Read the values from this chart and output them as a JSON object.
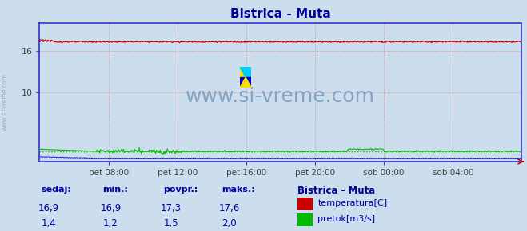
{
  "title": "Bistrica - Muta",
  "title_color": "#000099",
  "bg_color": "#ccdded",
  "plot_bg_color": "#ccdded",
  "border_color": "#3333cc",
  "grid_color": "#dd8888",
  "ylim": [
    0,
    20
  ],
  "yticks": [
    10,
    16
  ],
  "x_tick_labels": [
    "pet 08:00",
    "pet 12:00",
    "pet 16:00",
    "pet 20:00",
    "sob 00:00",
    "sob 04:00"
  ],
  "x_tick_positions": [
    96,
    192,
    288,
    384,
    480,
    576
  ],
  "total_points": 672,
  "temp_avg": 17.3,
  "temp_color": "#cc0000",
  "flow_avg": 1.5,
  "flow_color": "#00bb00",
  "blue_line_color": "#3333cc",
  "watermark_text": "www.si-vreme.com",
  "watermark_color": "#7799bb",
  "watermark_alpha": 0.85,
  "watermark_fontsize": 18,
  "legend_title": "Bistrica - Muta",
  "legend_title_color": "#000099",
  "legend_temp_label": "temperatura[C]",
  "legend_flow_label": "pretok[m3/s]",
  "table_label_color": "#0000aa",
  "table_headers": [
    "sedaj:",
    "min.:",
    "povpr.:",
    "maks.:"
  ],
  "table_temp_values": [
    "16,9",
    "16,9",
    "17,3",
    "17,6"
  ],
  "table_flow_values": [
    "1,4",
    "1,2",
    "1,5",
    "2,0"
  ],
  "num_points": 672,
  "icon_yellow": "#ffdd00",
  "icon_cyan": "#00ccff",
  "icon_blue": "#0000cc"
}
